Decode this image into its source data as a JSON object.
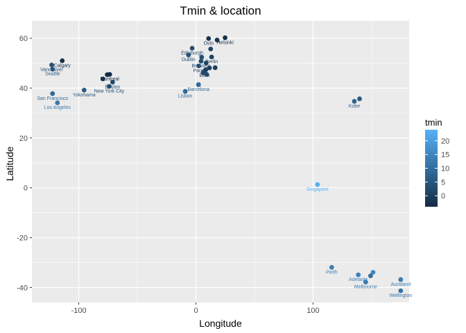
{
  "chart_data": {
    "type": "scatter",
    "title": "Tmin & location",
    "xlabel": "Longitude",
    "ylabel": "Latitude",
    "xlim": [
      -140,
      182
    ],
    "ylim": [
      -46,
      67
    ],
    "x_ticks": [
      -100,
      0,
      100
    ],
    "y_ticks": [
      -40,
      -20,
      0,
      20,
      40,
      60
    ],
    "grid": true,
    "legend": {
      "title": "tmin",
      "placement": "right",
      "range": [
        -4,
        24
      ],
      "ticks": [
        0,
        5,
        10,
        15,
        20
      ],
      "low_color": "#132B43",
      "high_color": "#56B1F7"
    },
    "points": [
      {
        "label": "Calgary",
        "x": -114.1,
        "y": 51.0,
        "tmin": -3
      },
      {
        "label": "Vancouver",
        "x": -123.1,
        "y": 49.3,
        "tmin": 4
      },
      {
        "label": "Seattle",
        "x": -122.3,
        "y": 47.6,
        "tmin": 6
      },
      {
        "label": "San Francisco",
        "x": -122.4,
        "y": 37.8,
        "tmin": 9
      },
      {
        "label": "Los Angeles",
        "x": -118.2,
        "y": 34.1,
        "tmin": 12
      },
      {
        "label": "Yokohama",
        "x": -95.4,
        "y": 39.2,
        "tmin": 6
      },
      {
        "label": "Montreal",
        "x": -73.6,
        "y": 45.5,
        "tmin": -5
      },
      {
        "label": "Boston",
        "x": -71.1,
        "y": 42.4,
        "tmin": 2
      },
      {
        "label": "New York City",
        "x": -74.0,
        "y": 40.7,
        "tmin": 3
      },
      {
        "label": "",
        "x": -75.7,
        "y": 45.4,
        "tmin": -6
      },
      {
        "label": "",
        "x": -79.4,
        "y": 43.7,
        "tmin": -1
      },
      {
        "label": "Edinburgh",
        "x": -3.2,
        "y": 56.0,
        "tmin": 3
      },
      {
        "label": "Dublin",
        "x": -6.3,
        "y": 53.3,
        "tmin": 4
      },
      {
        "label": "Oslo",
        "x": 10.8,
        "y": 59.9,
        "tmin": -2
      },
      {
        "label": "Helsinki",
        "x": 24.9,
        "y": 60.2,
        "tmin": -3
      },
      {
        "label": "",
        "x": 18.1,
        "y": 59.3,
        "tmin": -1
      },
      {
        "label": "Berlin",
        "x": 13.4,
        "y": 52.5,
        "tmin": 1
      },
      {
        "label": "",
        "x": 12.6,
        "y": 55.7,
        "tmin": 1
      },
      {
        "label": "",
        "x": 4.9,
        "y": 52.4,
        "tmin": 3
      },
      {
        "label": "Brussels",
        "x": 4.4,
        "y": 50.8,
        "tmin": 3
      },
      {
        "label": "Paris",
        "x": 2.4,
        "y": 48.9,
        "tmin": 4
      },
      {
        "label": "",
        "x": 8.7,
        "y": 50.1,
        "tmin": 1
      },
      {
        "label": "",
        "x": 11.6,
        "y": 48.1,
        "tmin": 0
      },
      {
        "label": "",
        "x": 16.4,
        "y": 48.2,
        "tmin": 0
      },
      {
        "label": "",
        "x": 8.5,
        "y": 47.4,
        "tmin": 1
      },
      {
        "label": "Bern",
        "x": 7.4,
        "y": 46.9,
        "tmin": 0
      },
      {
        "label": "",
        "x": 6.1,
        "y": 46.2,
        "tmin": 2
      },
      {
        "label": "",
        "x": 9.2,
        "y": 45.5,
        "tmin": 3
      },
      {
        "label": "",
        "x": 2.2,
        "y": 41.4,
        "tmin": 5
      },
      {
        "label": "Barcelona",
        "x": 2.2,
        "y": 41.4,
        "tmin": 9
      },
      {
        "label": "Lisbon",
        "x": -9.1,
        "y": 38.7,
        "tmin": 9
      },
      {
        "label": "Kobe",
        "x": 135.2,
        "y": 34.7,
        "tmin": 8
      },
      {
        "label": "",
        "x": 139.7,
        "y": 35.7,
        "tmin": 6
      },
      {
        "label": "Singapore",
        "x": 103.8,
        "y": 1.3,
        "tmin": 24
      },
      {
        "label": "Perth",
        "x": 115.9,
        "y": -31.9,
        "tmin": 13
      },
      {
        "label": "Adelaide",
        "x": 138.6,
        "y": -34.9,
        "tmin": 14
      },
      {
        "label": "Melbourne",
        "x": 144.9,
        "y": -37.8,
        "tmin": 12
      },
      {
        "label": "",
        "x": 149.1,
        "y": -35.3,
        "tmin": 10
      },
      {
        "label": "",
        "x": 151.2,
        "y": -33.9,
        "tmin": 15
      },
      {
        "label": "Auckland",
        "x": 174.8,
        "y": -36.8,
        "tmin": 13
      },
      {
        "label": "Wellington",
        "x": 174.8,
        "y": -41.3,
        "tmin": 11
      }
    ]
  }
}
